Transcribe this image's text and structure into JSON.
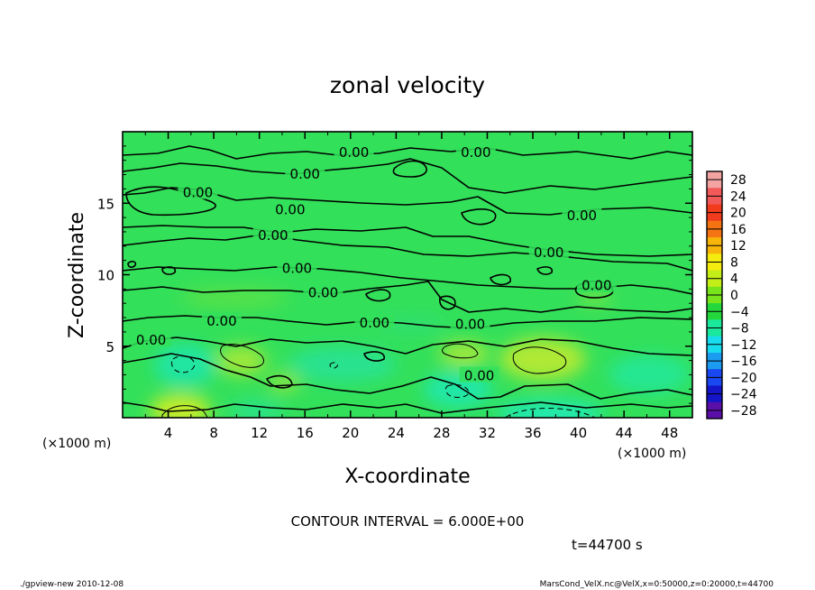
{
  "chart_data": {
    "type": "heatmap",
    "title": "zonal velocity",
    "xlabel": "X-coordinate",
    "ylabel": "Z-coordinate",
    "x_unit_left": "(×1000 m)",
    "x_unit_right": "(×1000 m)",
    "x_ticks": [
      4,
      8,
      12,
      16,
      20,
      24,
      28,
      32,
      36,
      40,
      44,
      48
    ],
    "y_ticks": [
      5,
      10,
      15
    ],
    "xlim": [
      0,
      50
    ],
    "ylim": [
      0,
      20
    ],
    "contour_interval": "CONTOUR INTERVAL = 6.000E+00",
    "time_label": "t=44700 s",
    "colorbar_levels": [
      28,
      24,
      20,
      16,
      12,
      8,
      4,
      0,
      -4,
      -8,
      -12,
      -16,
      -20,
      -24,
      -28
    ],
    "colorbar_labels": [
      "28",
      "24",
      "20",
      "16",
      "12",
      "8",
      "4",
      "0",
      "−4",
      "−8",
      "−12",
      "−16",
      "−20",
      "−24",
      "−28"
    ],
    "colorbar_colors": [
      "#f4a3a3",
      "#f25a5a",
      "#f03c1c",
      "#f47414",
      "#f7b40a",
      "#f4ec0e",
      "#c4ee18",
      "#78e41c",
      "#24d83c",
      "#1ae89c",
      "#18dcee",
      "#1c9cf0",
      "#1a48f0",
      "#1414c8",
      "#5a10a8"
    ],
    "contour_labels": [
      {
        "text": "0.00",
        "x": 20.3,
        "y": 18.6
      },
      {
        "text": "0.00",
        "x": 31.0,
        "y": 18.6
      },
      {
        "text": "0.00",
        "x": 16.0,
        "y": 17.1
      },
      {
        "text": "0.00",
        "x": 6.6,
        "y": 15.8
      },
      {
        "text": "0.00",
        "x": 14.7,
        "y": 14.6
      },
      {
        "text": "0.00",
        "x": 40.3,
        "y": 14.2
      },
      {
        "text": "0.00",
        "x": 13.2,
        "y": 12.8
      },
      {
        "text": "0.00",
        "x": 37.4,
        "y": 11.6
      },
      {
        "text": "0.00",
        "x": 15.3,
        "y": 10.5
      },
      {
        "text": "0.00",
        "x": 17.6,
        "y": 8.8
      },
      {
        "text": "0.00",
        "x": 41.6,
        "y": 9.3
      },
      {
        "text": "0.00",
        "x": 8.7,
        "y": 6.8
      },
      {
        "text": "0.00",
        "x": 22.1,
        "y": 6.7
      },
      {
        "text": "0.00",
        "x": 30.5,
        "y": 6.6
      },
      {
        "text": "0.00",
        "x": 2.5,
        "y": 5.5
      },
      {
        "text": "0.00",
        "x": 31.3,
        "y": 3.0
      }
    ],
    "contour_levels_shown": [
      0,
      6,
      -6
    ]
  },
  "footer": {
    "left": "./gpview-new  2010-12-08",
    "right": "MarsCond_VelX.nc@VelX,x=0:50000,z=0:20000,t=44700"
  },
  "colors": {
    "field_base": "#33e05a",
    "positive_region": "#b8ea34",
    "negative_region": "#22e6a4",
    "contour_line": "#000000"
  }
}
